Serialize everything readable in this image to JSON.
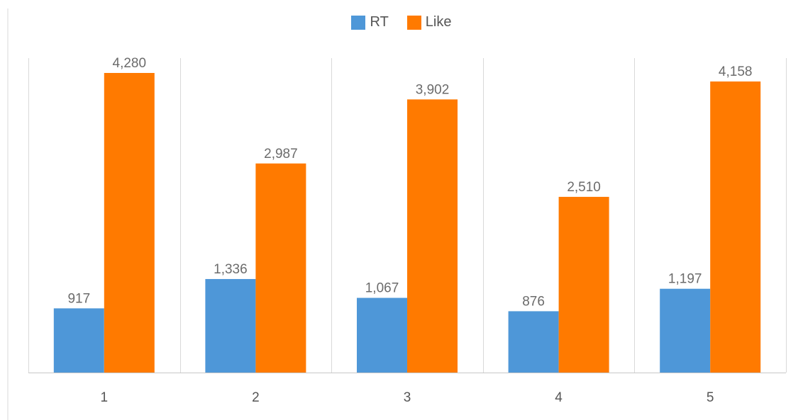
{
  "chart_data": {
    "type": "bar",
    "title": "",
    "xlabel": "",
    "ylabel": "",
    "categories": [
      "1",
      "2",
      "3",
      "4",
      "5"
    ],
    "series": [
      {
        "name": "RT",
        "color": "#4e97d8",
        "values": [
          917,
          1336,
          1067,
          876,
          1197
        ],
        "labels": [
          "917",
          "1,336",
          "1,067",
          "876",
          "1,197"
        ]
      },
      {
        "name": "Like",
        "color": "#ff7a00",
        "values": [
          4280,
          2987,
          3902,
          2510,
          4158
        ],
        "labels": [
          "4,280",
          "2,987",
          "3,902",
          "2,510",
          "4,158"
        ]
      }
    ],
    "ylim": [
      0,
      4300
    ],
    "grid": "vertical category separators",
    "legend": "top-center"
  }
}
